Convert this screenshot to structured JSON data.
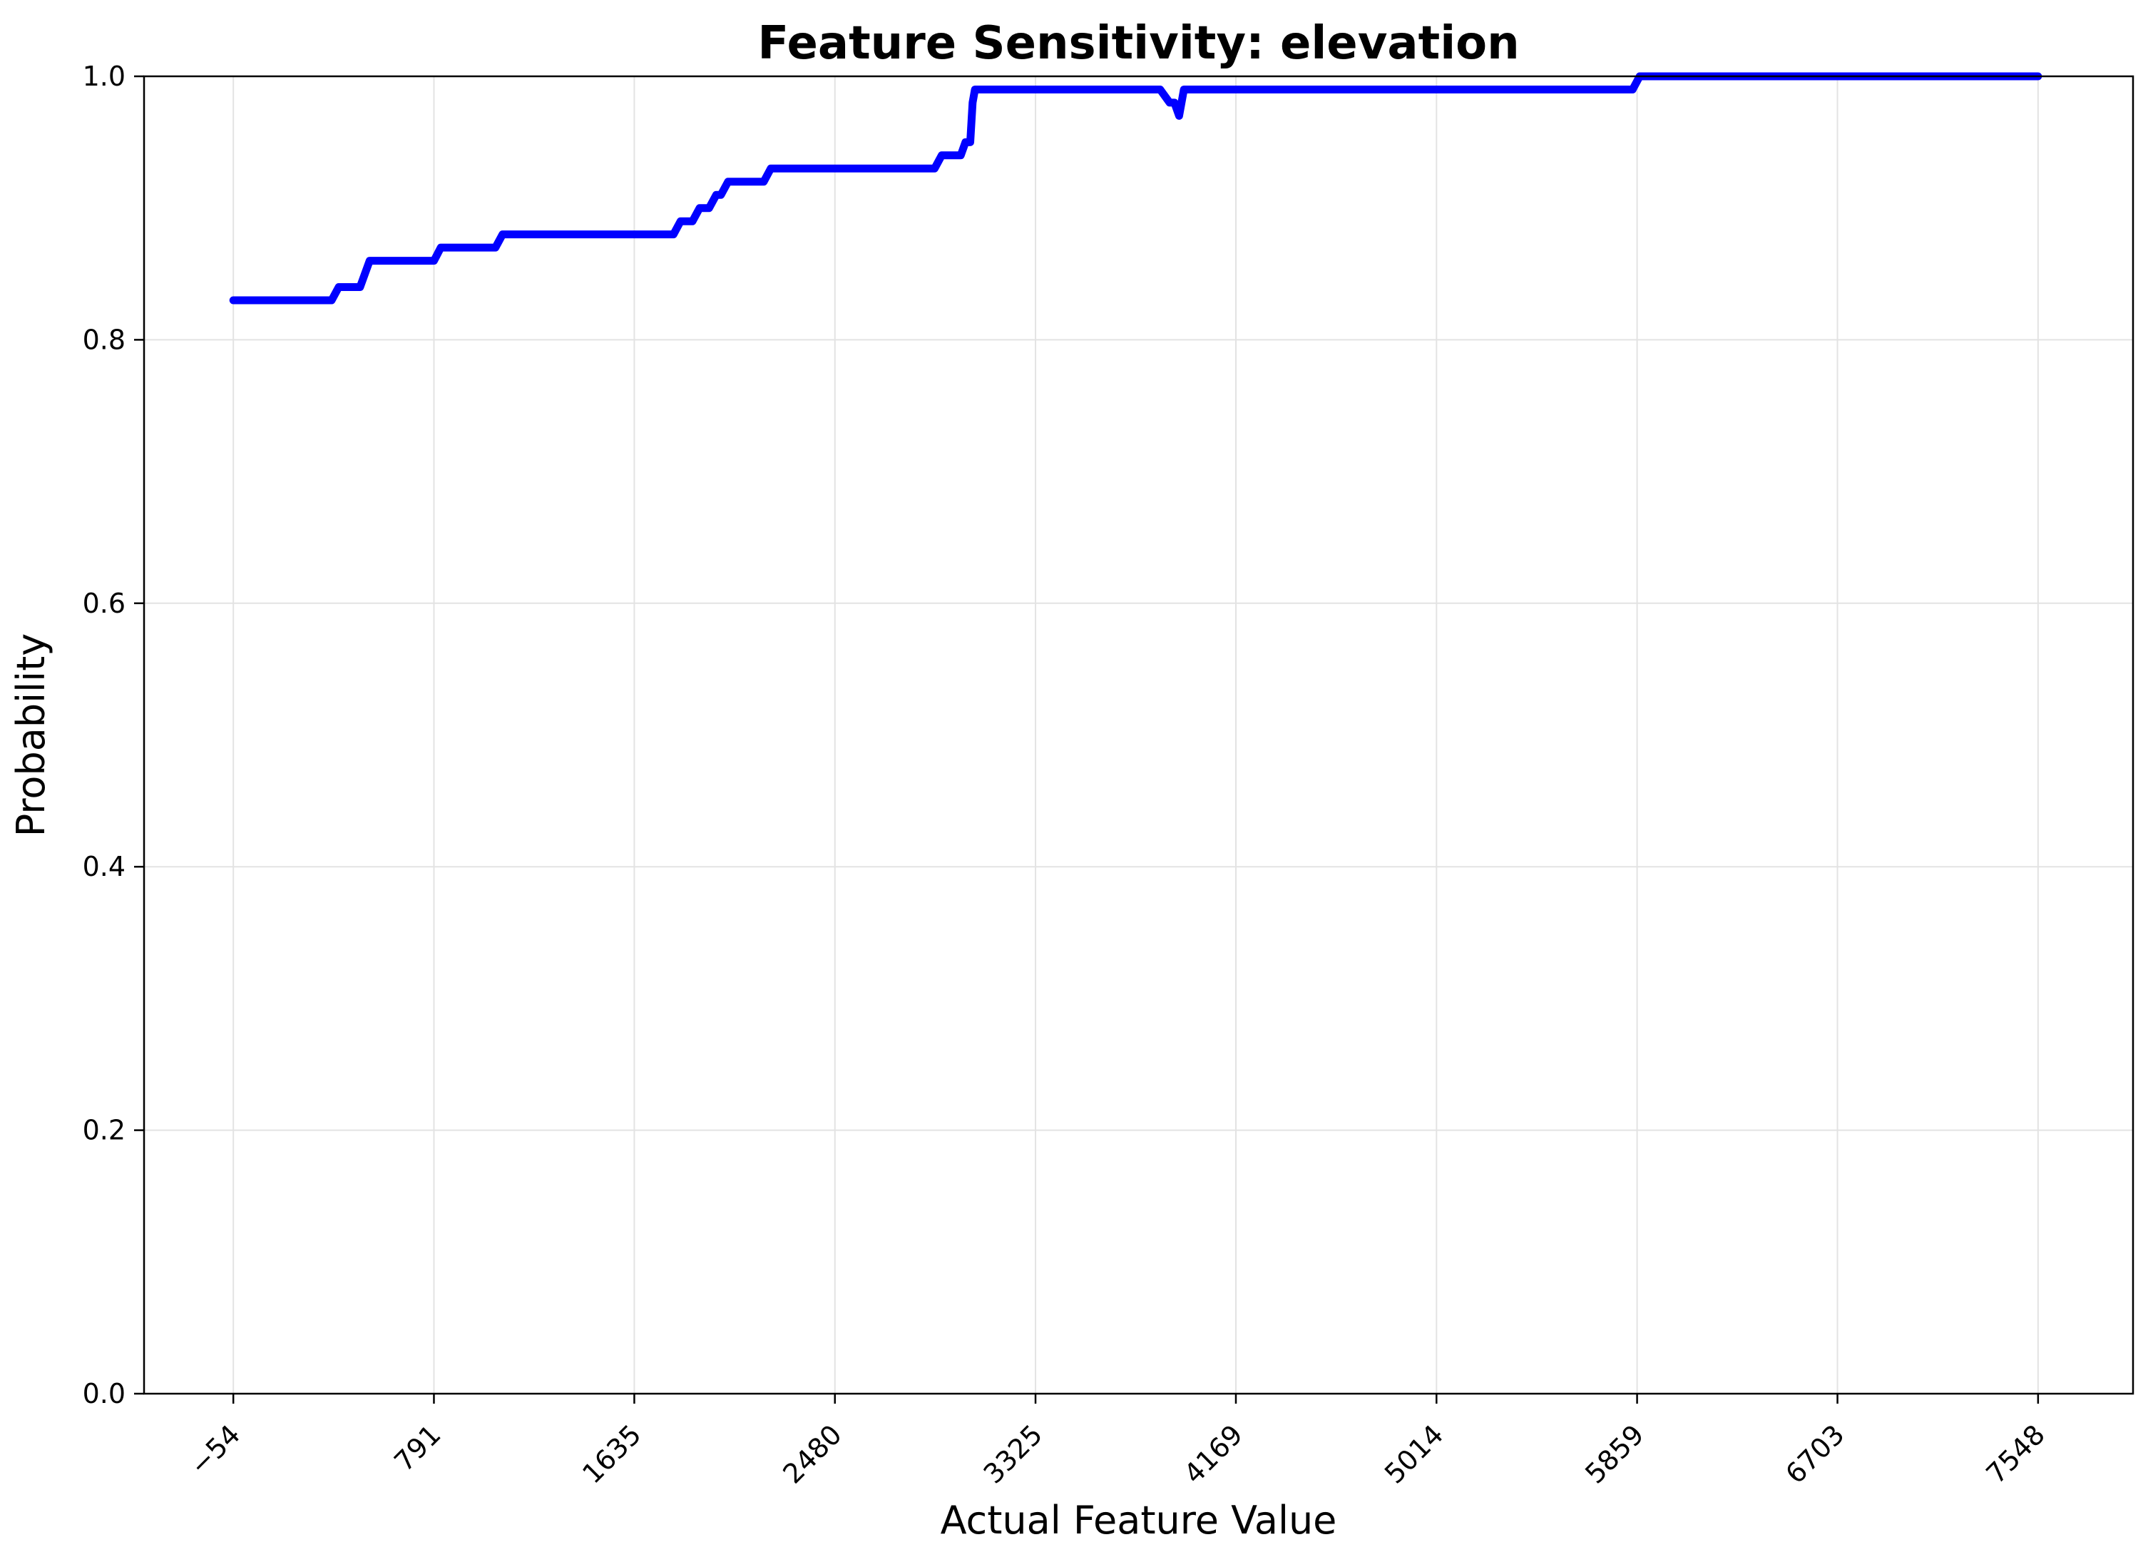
{
  "chart_data": {
    "type": "line",
    "title": "Feature Sensitivity: elevation",
    "xlabel": "Actual Feature Value",
    "ylabel": "Probability",
    "xlim": [
      -430,
      7948
    ],
    "ylim": [
      0.0,
      1.0
    ],
    "x_ticks": [
      -54,
      791,
      1635,
      2480,
      3325,
      4169,
      5014,
      5859,
      6703,
      7548
    ],
    "x_tick_labels": [
      "−54",
      "791",
      "1635",
      "2480",
      "3325",
      "4169",
      "5014",
      "5859",
      "6703",
      "7548"
    ],
    "y_ticks": [
      0.0,
      0.2,
      0.4,
      0.6,
      0.8,
      1.0
    ],
    "y_tick_labels": [
      "0.0",
      "0.2",
      "0.4",
      "0.6",
      "0.8",
      "1.0"
    ],
    "grid": true,
    "series": [
      {
        "color": "#0000ff",
        "x": [
          -54,
          360,
          390,
          480,
          520,
          791,
          820,
          1050,
          1080,
          1800,
          1830,
          1880,
          1910,
          1950,
          1980,
          2000,
          2030,
          2060,
          2180,
          2210,
          2900,
          2930,
          3010,
          3030,
          3050,
          3060,
          3070,
          3080,
          3100,
          3150,
          3200,
          3250,
          3300,
          3325,
          3500,
          3700,
          3850,
          3890,
          3910,
          3930,
          3950,
          3980,
          4050,
          4169,
          4500,
          5014,
          5500,
          5840,
          5870,
          5900,
          6200,
          6703,
          7200,
          7548
        ],
        "y": [
          0.83,
          0.83,
          0.84,
          0.84,
          0.86,
          0.86,
          0.87,
          0.87,
          0.88,
          0.88,
          0.89,
          0.89,
          0.9,
          0.9,
          0.91,
          0.91,
          0.92,
          0.92,
          0.92,
          0.93,
          0.93,
          0.94,
          0.94,
          0.95,
          0.95,
          0.98,
          0.99,
          0.99,
          0.99,
          0.99,
          0.99,
          0.99,
          0.99,
          0.99,
          0.99,
          0.99,
          0.99,
          0.98,
          0.98,
          0.97,
          0.99,
          0.99,
          0.99,
          0.99,
          0.99,
          0.99,
          0.99,
          0.99,
          1.0,
          1.0,
          1.0,
          1.0,
          1.0,
          1.0
        ]
      }
    ]
  }
}
